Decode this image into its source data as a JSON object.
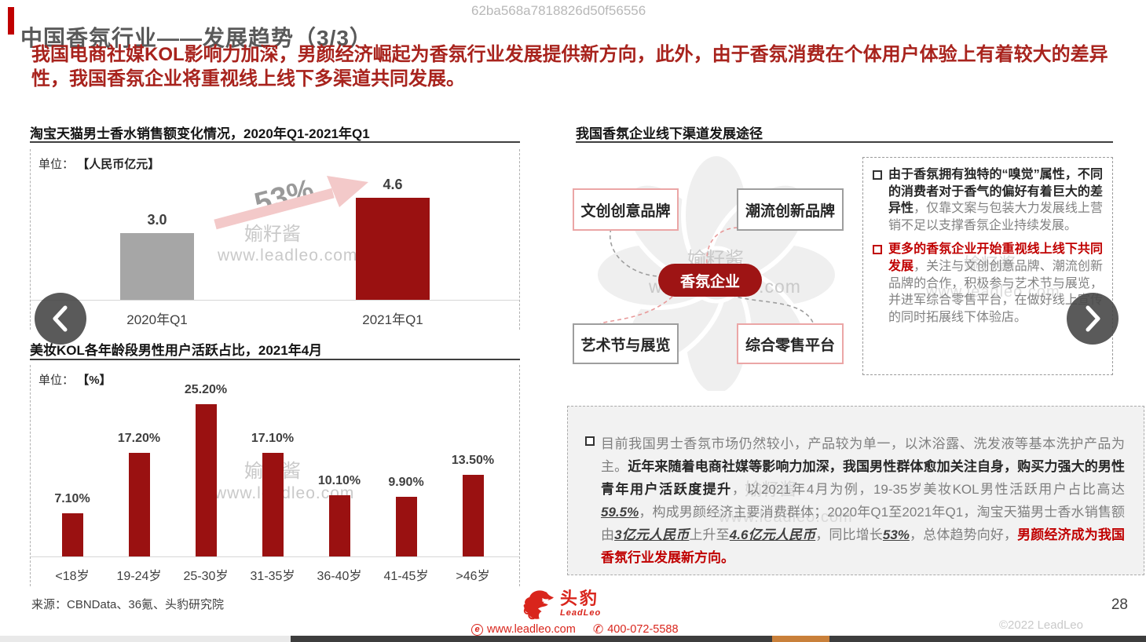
{
  "meta": {
    "watermark_id": "62ba568a7818826d50f56556",
    "page_number": "28",
    "copyright": "©2022 LeadLeo"
  },
  "header": {
    "title": "中国香氛行业——发展趋势（3/3）",
    "subtitle": "我国电商社媒KOL影响力加深，男颜经济崛起为香氛行业发展提供新方向，此外，由于香氛消费在个体用户体验上有着较大的差异性，我国香氛企业将重视线上线下多渠道共同发展。"
  },
  "watermark": {
    "name": "媮籽酱",
    "site": "www.leadleo.com"
  },
  "sales_chart": {
    "title": "淘宝天猫男士香水销售额变化情况，2020年Q1-2021年Q1",
    "unit_label": "单位：",
    "unit_value": "【人民币亿元】",
    "growth_label": "53%"
  },
  "age_chart": {
    "title": "美妆KOL各年龄段男性用户活跃占比，2021年4月",
    "unit_label": "单位：",
    "unit_value": "【%】"
  },
  "chart_data": [
    {
      "type": "bar",
      "title": "淘宝天猫男士香水销售额变化情况，2020年Q1-2021年Q1",
      "unit": "人民币亿元",
      "categories": [
        "2020年Q1",
        "2021年Q1"
      ],
      "values": [
        3.0,
        4.6
      ],
      "labels": [
        "3.0",
        "4.6"
      ],
      "bar_colors": [
        "#a6a6a6",
        "#9a1111"
      ],
      "annotation": "53%",
      "ylim": [
        0,
        5
      ],
      "grid": false
    },
    {
      "type": "bar",
      "title": "美妆KOL各年龄段男性用户活跃占比，2021年4月",
      "unit": "%",
      "categories": [
        "<18岁",
        "19-24岁",
        "25-30岁",
        "31-35岁",
        "36-40岁",
        "41-45岁",
        ">46岁"
      ],
      "values": [
        7.1,
        17.2,
        25.2,
        17.1,
        10.1,
        9.9,
        13.5
      ],
      "labels": [
        "7.10%",
        "17.20%",
        "25.20%",
        "17.10%",
        "10.10%",
        "9.90%",
        "13.50%"
      ],
      "bar_color": "#9a1111",
      "ylim": [
        0,
        28
      ],
      "grid": false
    }
  ],
  "diagram": {
    "title": "我国香氛企业线下渠道发展途径",
    "center_label": "香氛企业",
    "nodes": [
      {
        "label": "文创创意品牌",
        "accent": "red"
      },
      {
        "label": "潮流创新品牌",
        "accent": "gray"
      },
      {
        "label": "艺术节与展览",
        "accent": "gray"
      },
      {
        "label": "综合零售平台",
        "accent": "red"
      }
    ]
  },
  "insight_box": {
    "bullets": [
      {
        "lead": "由于香氛拥有独特的“嗅觉”属性，不同的消费者对于香气的偏好有着巨大的差异性",
        "rest": "，仅靠文案与包装大力发展线上营销不足以支撑香氛企业持续发展。",
        "lead_style": "dark"
      },
      {
        "lead": "更多的香氛企业开始重视线上线下共同发展",
        "rest": "，关注与文创创意品牌、潮流创新品牌的合作，积极参与艺术节与展览，并进军综合零售平台，在做好线上宣传的同时拓展线下体验店。",
        "lead_style": "red"
      }
    ]
  },
  "summary_box": {
    "segments": [
      {
        "style": "gray",
        "text": "目前我国男士香氛市场仍然较小，产品较为单一，以沐浴露、洗发液等基本洗护产品为主。"
      },
      {
        "style": "bold",
        "text": "近年来随着电商社媒等影响力加深，我国男性群体愈加关注自身，购买力强大的男性青年用户活跃度提升"
      },
      {
        "style": "gray",
        "text": "，以2021年4月为例，19-35岁美妆KOL男性活跃用户占比高达"
      },
      {
        "style": "em",
        "text": "59.5%"
      },
      {
        "style": "gray",
        "text": "，构成男颜经济主要消费群体；2020年Q1至2021年Q1，淘宝天猫男士香水销售额由"
      },
      {
        "style": "em",
        "text": "3亿元人民币"
      },
      {
        "style": "gray",
        "text": "上升至"
      },
      {
        "style": "em",
        "text": "4.6亿元人民币"
      },
      {
        "style": "gray",
        "text": "，同比增长"
      },
      {
        "style": "em",
        "text": "53%"
      },
      {
        "style": "gray",
        "text": "，总体趋势向好，"
      },
      {
        "style": "red",
        "text": "男颜经济成为我国香氛行业发展新方向。"
      }
    ]
  },
  "footer": {
    "source": "来源：CBNData、36氪、头豹研究院",
    "logo_cn": "头豹",
    "logo_en": "LeadLeo",
    "site": "www.leadleo.com",
    "phone": "400-072-5588",
    "globe_glyph": "e",
    "phone_glyph": "✆"
  },
  "colors": {
    "primary_red": "#9a1111",
    "accent_red": "#c00000",
    "subtitle_red": "#a8231d",
    "gray_bar": "#a6a6a6",
    "pill_red": "#9e1414",
    "thumb_orange": "#c9803a"
  }
}
